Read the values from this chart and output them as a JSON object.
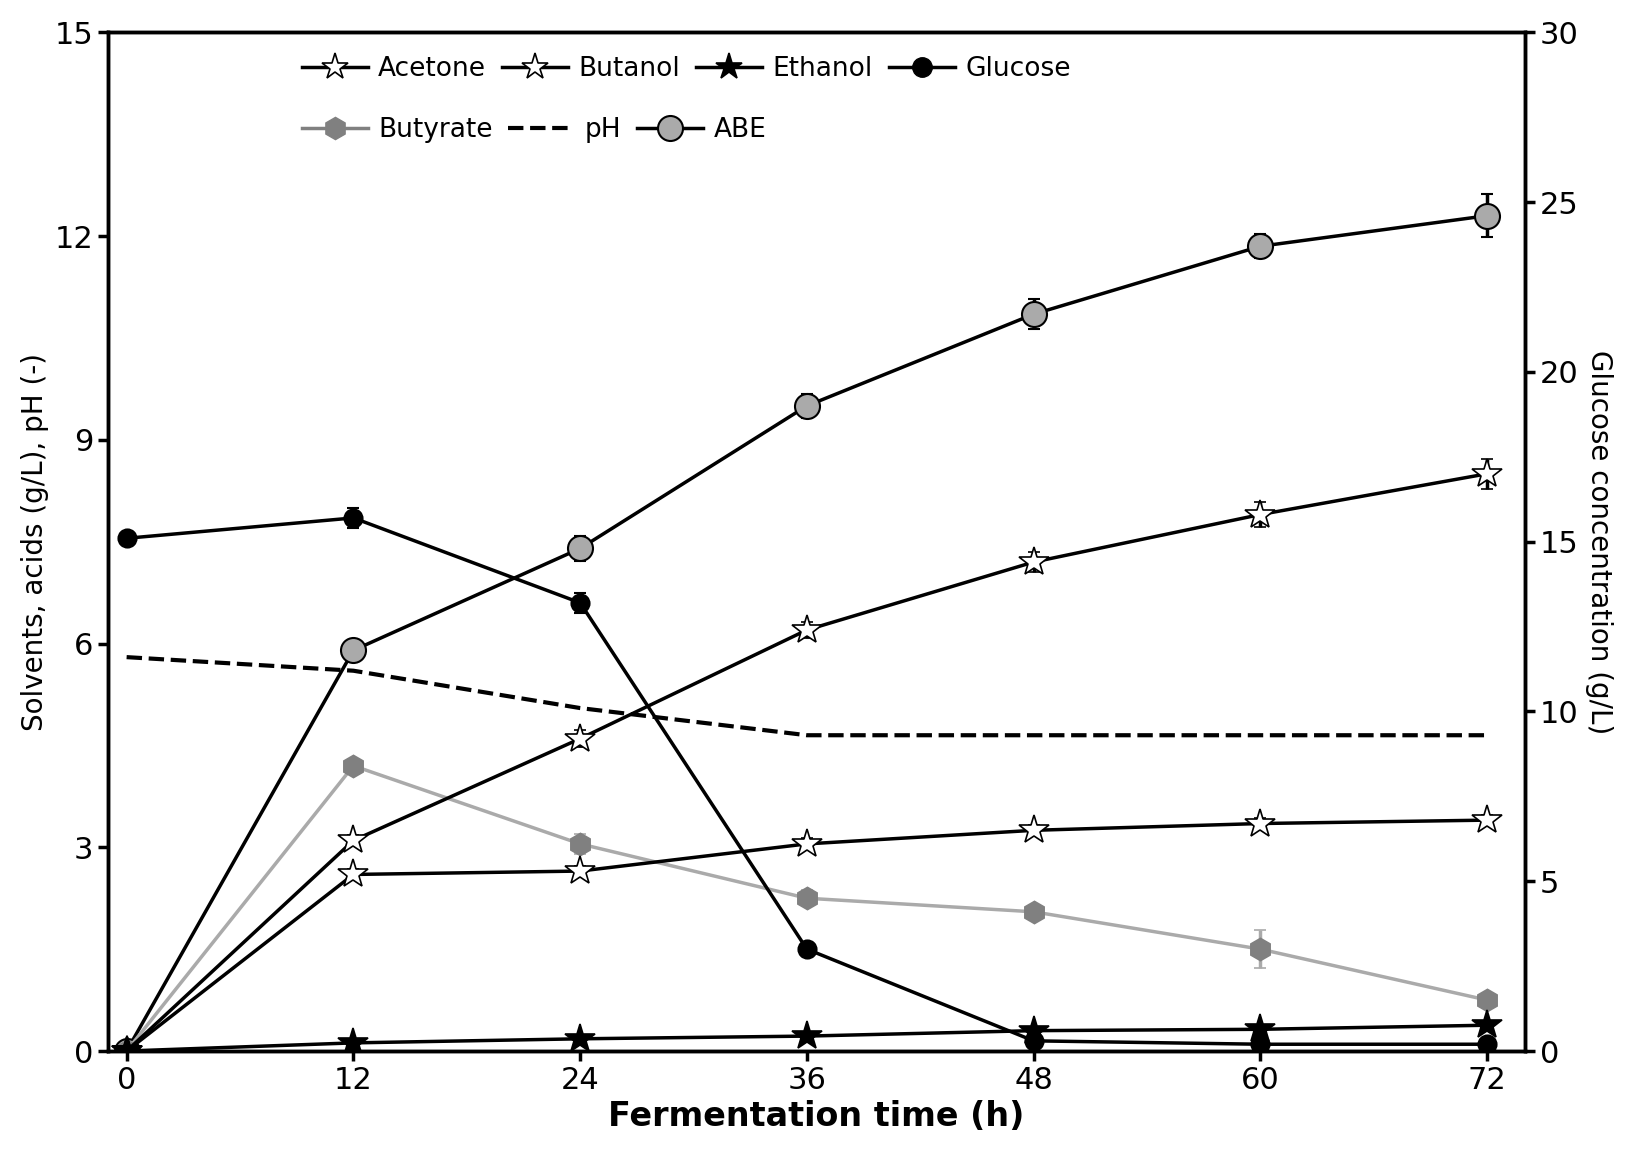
{
  "x": [
    0,
    12,
    24,
    36,
    48,
    60,
    72
  ],
  "acetone": [
    0,
    3.1,
    4.6,
    6.2,
    7.2,
    7.9,
    8.5
  ],
  "acetone_err": [
    0,
    0.08,
    0.12,
    0.12,
    0.15,
    0.18,
    0.22
  ],
  "butanol": [
    0,
    2.6,
    2.65,
    3.05,
    3.25,
    3.35,
    3.4
  ],
  "butanol_err": [
    0,
    0.08,
    0.08,
    0.08,
    0.08,
    0.08,
    0.08
  ],
  "ethanol": [
    0,
    0.12,
    0.18,
    0.22,
    0.3,
    0.32,
    0.38
  ],
  "ethanol_err": [
    0,
    0.03,
    0.03,
    0.03,
    0.03,
    0.03,
    0.03
  ],
  "glucose": [
    15.1,
    15.7,
    13.2,
    3.0,
    0.3,
    0.2,
    0.2
  ],
  "glucose_err": [
    0,
    0.3,
    0.3,
    0.2,
    0.1,
    0.1,
    0.1
  ],
  "butyrate": [
    0,
    4.2,
    3.05,
    2.25,
    2.05,
    1.5,
    0.75
  ],
  "butyrate_err": [
    0,
    0.1,
    0.15,
    0.12,
    0.1,
    0.28,
    0.08
  ],
  "pH": [
    5.8,
    5.6,
    5.05,
    4.65,
    4.65,
    4.65,
    4.65
  ],
  "ABE": [
    0,
    5.9,
    7.4,
    9.5,
    10.85,
    11.85,
    12.3
  ],
  "ABE_err": [
    0,
    0.12,
    0.18,
    0.18,
    0.22,
    0.18,
    0.32
  ],
  "ylim_left": [
    0,
    15
  ],
  "ylim_right": [
    0,
    30
  ],
  "xticks": [
    0,
    12,
    24,
    36,
    48,
    60,
    72
  ],
  "yticks_left": [
    0,
    3,
    6,
    9,
    12,
    15
  ],
  "yticks_right": [
    0,
    5,
    10,
    15,
    20,
    25,
    30
  ],
  "xlabel": "Fermentation time (h)",
  "ylabel_left": "Solvents, acids (g/L), pH (-)",
  "ylabel_right": "Glucose concentration (g/L)",
  "color_lightgray": "#aaaaaa",
  "color_butyrate": "#aaaaaa"
}
